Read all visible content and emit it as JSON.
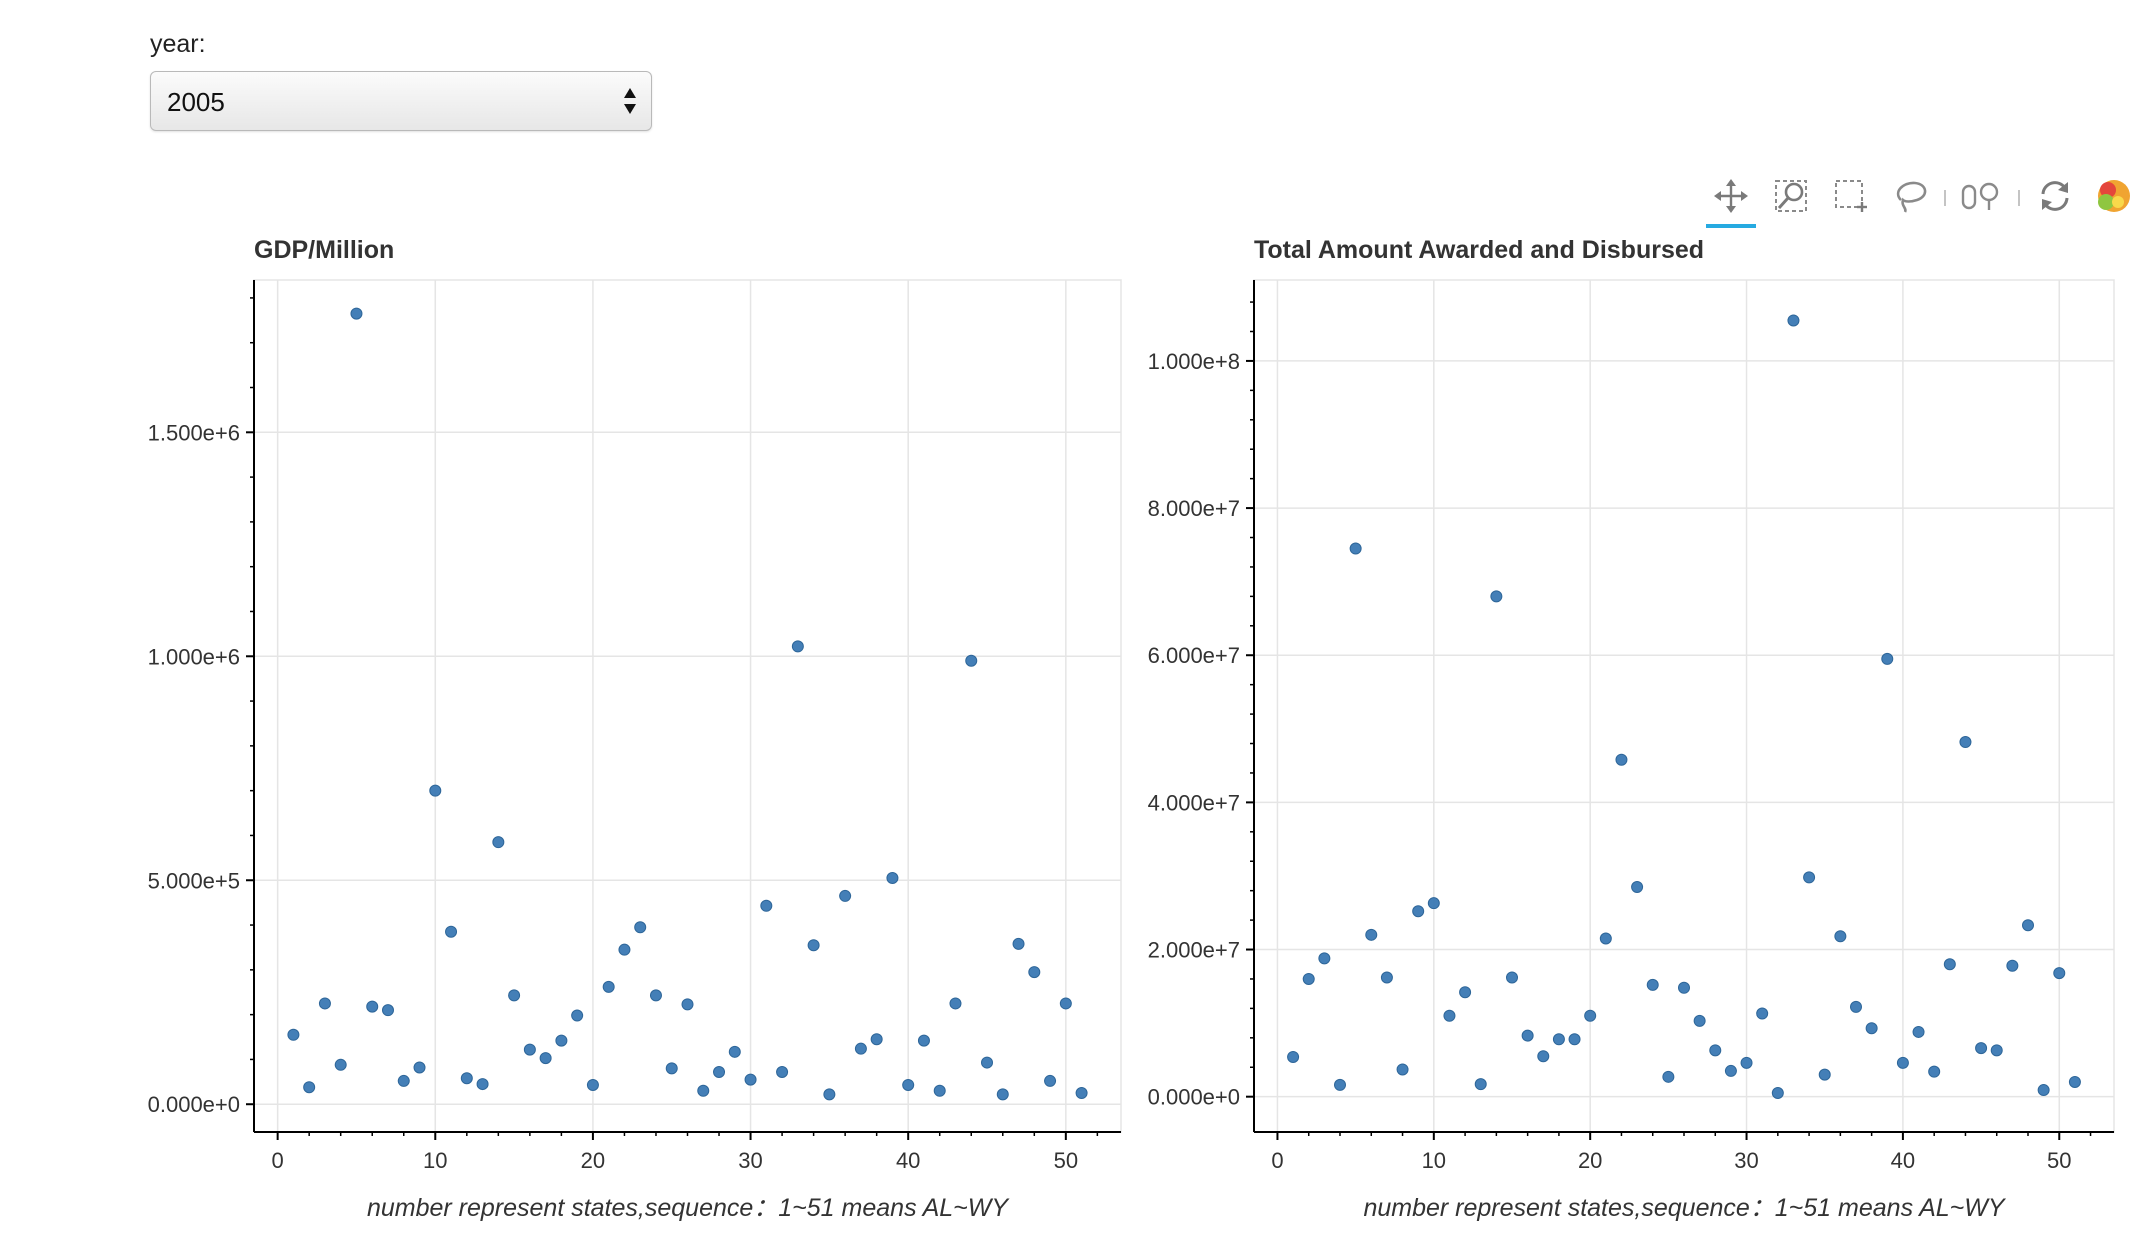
{
  "controls": {
    "year_label": "year:",
    "year_value": "2005"
  },
  "toolbar": {
    "tools": [
      {
        "name": "pan-tool-icon",
        "active": true
      },
      {
        "name": "wheel-zoom-tool-icon",
        "active": false
      },
      {
        "name": "box-zoom-tool-icon",
        "active": false
      },
      {
        "name": "lasso-select-tool-icon",
        "active": false
      },
      {
        "name": "resize-tool-icon",
        "active": false
      },
      {
        "name": "reset-tool-icon",
        "active": false
      },
      {
        "name": "bokeh-logo-icon",
        "active": false
      }
    ],
    "accent": "#26aae1"
  },
  "chart_data": [
    {
      "type": "scatter",
      "title": "GDP/Million",
      "xlabel": "number represent states,sequence：1~51 means AL~WY",
      "ylabel": "",
      "xlim": [
        -1.5,
        53.5
      ],
      "ylim": [
        -62000,
        1840000
      ],
      "xticks": [
        0,
        10,
        20,
        30,
        40,
        50
      ],
      "yticks": [
        0,
        500000,
        1000000,
        1500000
      ],
      "ytick_labels": [
        "0.000e+0",
        "5.000e+5",
        "1.000e+6",
        "1.500e+6"
      ],
      "grid": true,
      "marker_color": "#3a78b3",
      "x": [
        1,
        2,
        3,
        4,
        5,
        6,
        7,
        8,
        9,
        10,
        11,
        12,
        13,
        14,
        15,
        16,
        17,
        18,
        19,
        20,
        21,
        22,
        23,
        24,
        25,
        26,
        27,
        28,
        29,
        30,
        31,
        32,
        33,
        34,
        35,
        36,
        37,
        38,
        39,
        40,
        41,
        42,
        43,
        44,
        45,
        46,
        47,
        48,
        49,
        50,
        51
      ],
      "y": [
        155000,
        38000,
        225000,
        88000,
        1765000,
        218000,
        210000,
        52000,
        82000,
        700000,
        385000,
        58000,
        45000,
        585000,
        243000,
        122000,
        103000,
        142000,
        198000,
        43000,
        262000,
        345000,
        395000,
        243000,
        80000,
        223000,
        30000,
        72000,
        117000,
        55000,
        443000,
        72000,
        1022000,
        355000,
        22000,
        465000,
        124000,
        145000,
        505000,
        43000,
        142000,
        30000,
        225000,
        990000,
        93000,
        22000,
        358000,
        295000,
        52000,
        225000,
        25000
      ]
    },
    {
      "type": "scatter",
      "title": "Total Amount Awarded and Disbursed",
      "xlabel": "number represent states,sequence：1~51 means AL~WY",
      "ylabel": "",
      "xlim": [
        -1.5,
        53.5
      ],
      "ylim": [
        -4800000,
        111000000
      ],
      "xticks": [
        0,
        10,
        20,
        30,
        40,
        50
      ],
      "yticks": [
        0,
        20000000,
        40000000,
        60000000,
        80000000,
        100000000
      ],
      "ytick_labels": [
        "0.000e+0",
        "2.000e+7",
        "4.000e+7",
        "6.000e+7",
        "8.000e+7",
        "1.000e+8"
      ],
      "grid": true,
      "marker_color": "#3a78b3",
      "x": [
        1,
        2,
        3,
        4,
        5,
        6,
        7,
        8,
        9,
        10,
        11,
        12,
        13,
        14,
        15,
        16,
        17,
        18,
        19,
        20,
        21,
        22,
        23,
        24,
        25,
        26,
        27,
        28,
        29,
        30,
        31,
        32,
        33,
        34,
        35,
        36,
        37,
        38,
        39,
        40,
        41,
        42,
        43,
        44,
        45,
        46,
        47,
        48,
        49,
        50,
        51
      ],
      "y": [
        5400000,
        16000000,
        18800000,
        1600000,
        74500000,
        22000000,
        16200000,
        3700000,
        25200000,
        26300000,
        11000000,
        14200000,
        1700000,
        68000000,
        16200000,
        8300000,
        5500000,
        7800000,
        7800000,
        11000000,
        21500000,
        45800000,
        28500000,
        15200000,
        2700000,
        14800000,
        10300000,
        6300000,
        3500000,
        4600000,
        11300000,
        500000,
        105500000,
        29800000,
        3000000,
        21800000,
        12200000,
        9300000,
        59500000,
        4600000,
        8800000,
        3400000,
        18000000,
        48200000,
        6600000,
        6300000,
        17800000,
        23300000,
        900000,
        16800000,
        2000000
      ]
    }
  ]
}
